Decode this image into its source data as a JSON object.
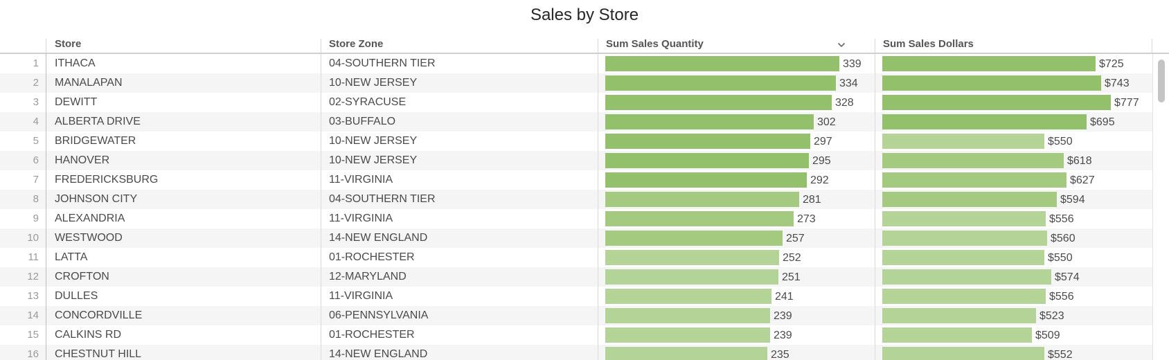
{
  "title": "Sales by Store",
  "columns": {
    "store": "Store",
    "zone": "Store Zone",
    "qty": "Sum Sales Quantity",
    "dollars": "Sum Sales Dollars"
  },
  "sort_icon": "chevron-down-icon",
  "colors": {
    "bar_dark": "#93c06a",
    "bar_mid": "#a4ca80",
    "bar_light": "#b4d396"
  },
  "rows": [
    {
      "n": "1",
      "store": "ITHACA",
      "zone": "04-SOUTHERN TIER",
      "qty": 339,
      "qty_label": "339",
      "dollars": 725,
      "dollars_label": "$725"
    },
    {
      "n": "2",
      "store": "MANALAPAN",
      "zone": "10-NEW JERSEY",
      "qty": 334,
      "qty_label": "334",
      "dollars": 743,
      "dollars_label": "$743"
    },
    {
      "n": "3",
      "store": "DEWITT",
      "zone": "02-SYRACUSE",
      "qty": 328,
      "qty_label": "328",
      "dollars": 777,
      "dollars_label": "$777"
    },
    {
      "n": "4",
      "store": "ALBERTA DRIVE",
      "zone": "03-BUFFALO",
      "qty": 302,
      "qty_label": "302",
      "dollars": 695,
      "dollars_label": "$695"
    },
    {
      "n": "5",
      "store": "BRIDGEWATER",
      "zone": "10-NEW JERSEY",
      "qty": 297,
      "qty_label": "297",
      "dollars": 550,
      "dollars_label": "$550"
    },
    {
      "n": "6",
      "store": "HANOVER",
      "zone": "10-NEW JERSEY",
      "qty": 295,
      "qty_label": "295",
      "dollars": 618,
      "dollars_label": "$618"
    },
    {
      "n": "7",
      "store": "FREDERICKSBURG",
      "zone": "11-VIRGINIA",
      "qty": 292,
      "qty_label": "292",
      "dollars": 627,
      "dollars_label": "$627"
    },
    {
      "n": "8",
      "store": "JOHNSON CITY",
      "zone": "04-SOUTHERN TIER",
      "qty": 281,
      "qty_label": "281",
      "dollars": 594,
      "dollars_label": "$594"
    },
    {
      "n": "9",
      "store": "ALEXANDRIA",
      "zone": "11-VIRGINIA",
      "qty": 273,
      "qty_label": "273",
      "dollars": 556,
      "dollars_label": "$556"
    },
    {
      "n": "10",
      "store": "WESTWOOD",
      "zone": "14-NEW ENGLAND",
      "qty": 257,
      "qty_label": "257",
      "dollars": 560,
      "dollars_label": "$560"
    },
    {
      "n": "11",
      "store": "LATTA",
      "zone": "01-ROCHESTER",
      "qty": 252,
      "qty_label": "252",
      "dollars": 550,
      "dollars_label": "$550"
    },
    {
      "n": "12",
      "store": "CROFTON",
      "zone": "12-MARYLAND",
      "qty": 251,
      "qty_label": "251",
      "dollars": 574,
      "dollars_label": "$574"
    },
    {
      "n": "13",
      "store": "DULLES",
      "zone": "11-VIRGINIA",
      "qty": 241,
      "qty_label": "241",
      "dollars": 556,
      "dollars_label": "$556"
    },
    {
      "n": "14",
      "store": "CONCORDVILLE",
      "zone": "06-PENNSYLVANIA",
      "qty": 239,
      "qty_label": "239",
      "dollars": 523,
      "dollars_label": "$523"
    },
    {
      "n": "15",
      "store": "CALKINS RD",
      "zone": "01-ROCHESTER",
      "qty": 239,
      "qty_label": "239",
      "dollars": 509,
      "dollars_label": "$509"
    },
    {
      "n": "16",
      "store": "CHESTNUT HILL",
      "zone": "14-NEW ENGLAND",
      "qty": 235,
      "qty_label": "235",
      "dollars": 552,
      "dollars_label": "$552"
    }
  ]
}
